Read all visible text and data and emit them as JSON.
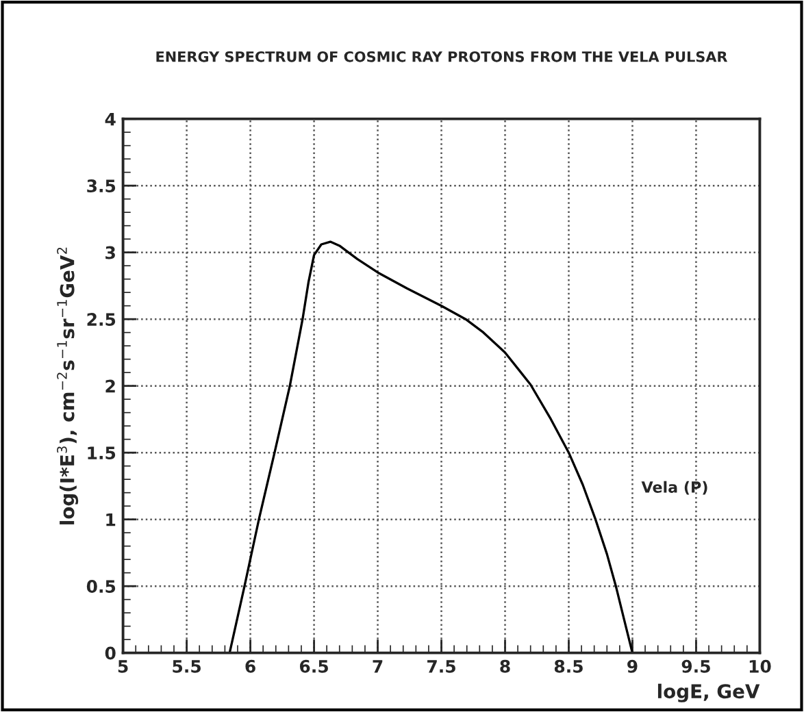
{
  "chart_data": {
    "type": "line",
    "title": "ENERGY SPECTRUM OF COSMIC RAY PROTONS FROM THE VELA PULSAR",
    "xlabel": "logE, GeV",
    "ylabel": "log(I*E$^{3}$), cm$^{−2}$s$^{−1}$sr$^{−1}$GeV$^{2}$",
    "x": [
      5.837,
      5.954,
      6.067,
      6.19,
      6.31,
      6.41,
      6.457,
      6.5,
      6.557,
      6.628,
      6.7,
      6.84,
      7.0,
      7.23,
      7.5,
      7.69,
      7.83,
      8.0,
      8.2,
      8.36,
      8.5,
      8.61,
      8.71,
      8.8,
      8.87,
      8.94,
      9.0
    ],
    "series": [
      {
        "color": "#000000",
        "values": [
          0,
          0.5,
          1.0,
          1.5,
          2.0,
          2.5,
          2.78,
          2.98,
          3.06,
          3.08,
          3.05,
          2.95,
          2.85,
          2.73,
          2.6,
          2.5,
          2.4,
          2.25,
          2.01,
          1.75,
          1.5,
          1.26,
          1.0,
          0.74,
          0.5,
          0.23,
          0
        ]
      }
    ],
    "annotations": [
      "Vela (P)"
    ],
    "xlim": [
      5,
      10
    ],
    "ylim": [
      0,
      4
    ],
    "xticks": [
      5,
      5.5,
      6,
      6.5,
      7,
      7.5,
      8,
      8.5,
      9,
      9.5,
      10
    ],
    "yticks": [
      0,
      0.5,
      1,
      1.5,
      2,
      2.5,
      3,
      3.5,
      4
    ],
    "grid": true,
    "marker": "none",
    "line_style": "solid"
  }
}
